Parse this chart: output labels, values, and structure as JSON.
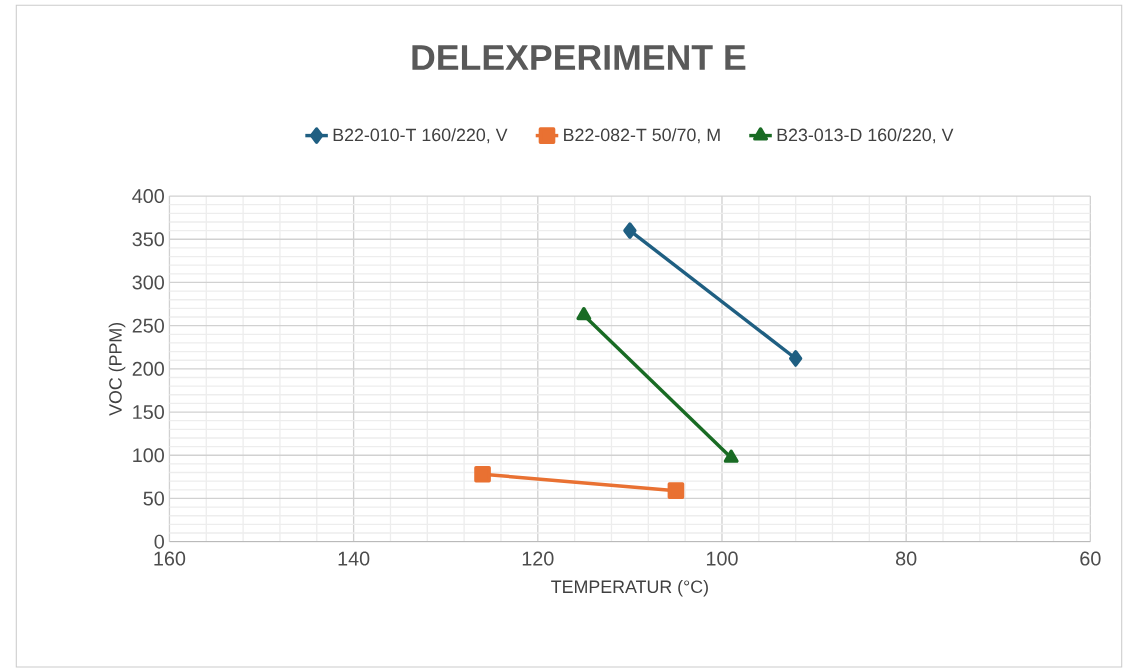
{
  "chart_data": {
    "type": "line",
    "title": "DELEXPERIMENT E",
    "xlabel": "TEMPERATUR (°C)",
    "ylabel": "VOC (PPM)",
    "xlim": [
      160,
      60
    ],
    "xticks": [
      160,
      140,
      120,
      100,
      80,
      60
    ],
    "ylim": [
      0,
      400
    ],
    "yticks": [
      0,
      50,
      100,
      150,
      200,
      250,
      300,
      350,
      400
    ],
    "grid": true,
    "legend": "top",
    "series": [
      {
        "name": "B22-010-T 160/220, V",
        "color": "#1f5f82",
        "marker": "diamond",
        "x": [
          110,
          92
        ],
        "values": [
          360,
          212
        ]
      },
      {
        "name": "B22-082-T 50/70, M",
        "color": "#e97132",
        "marker": "square",
        "x": [
          126,
          105
        ],
        "values": [
          78,
          59
        ]
      },
      {
        "name": "B23-013-D 160/220, V",
        "color": "#196b24",
        "marker": "triangle",
        "x": [
          115,
          99
        ],
        "values": [
          262,
          97
        ]
      }
    ]
  }
}
